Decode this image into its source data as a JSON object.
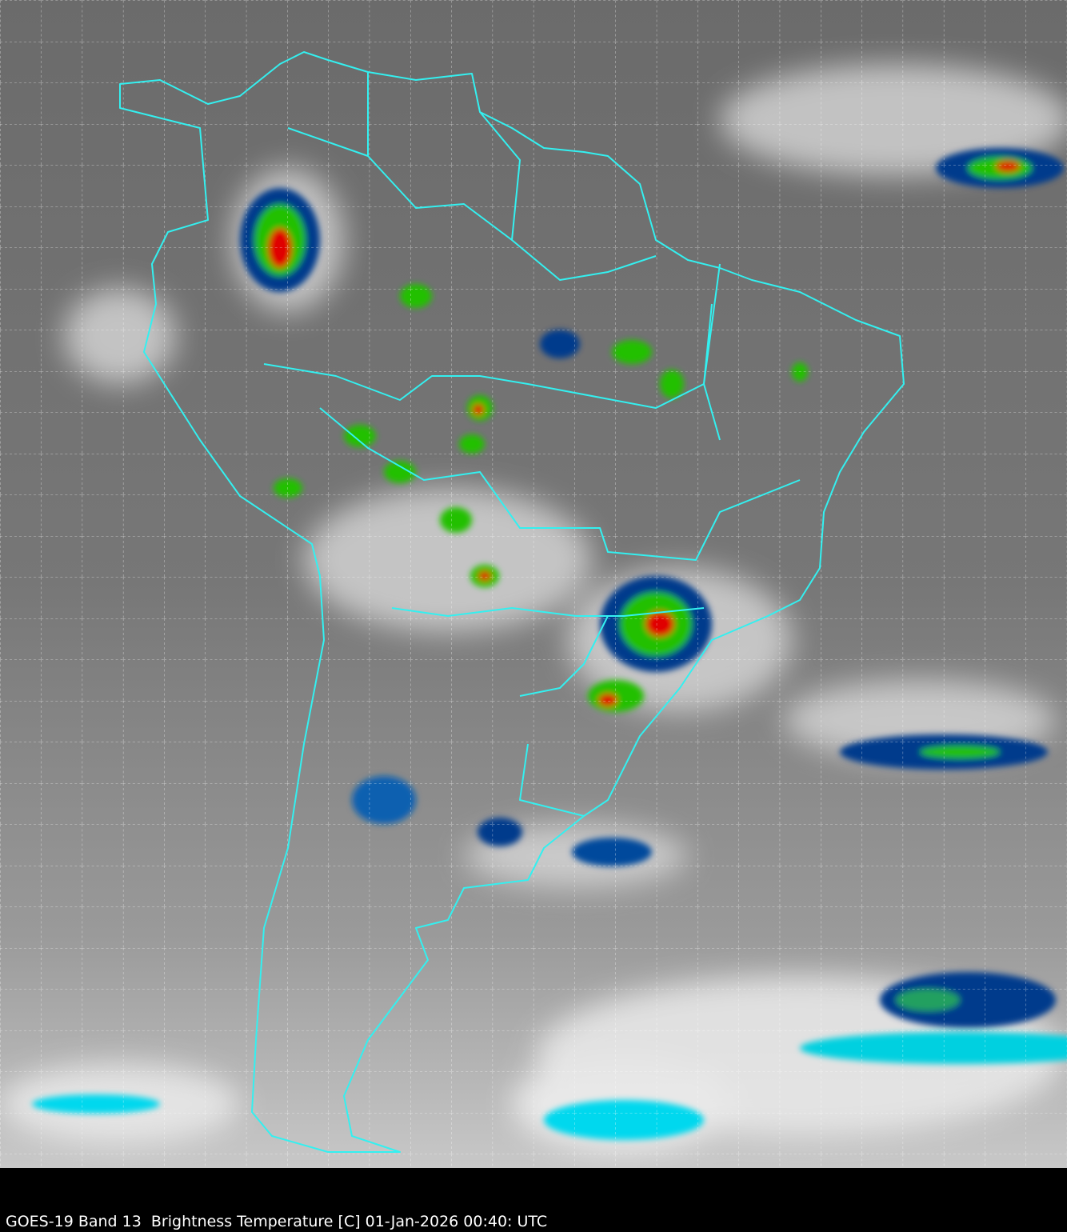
{
  "caption": "GOES-19 Band 13  Brightness Temperature [C] 01-Jan-2026 00:40: UTC",
  "map": {
    "region": "South America",
    "boundary_color": "#33f0f0",
    "grid_color": "#ffffff",
    "grid_style": "dashed",
    "colorscale": [
      "#ffffff",
      "#00e5ff",
      "#003a8c",
      "#22c000",
      "#f0f000",
      "#e00000",
      "#400000"
    ]
  }
}
